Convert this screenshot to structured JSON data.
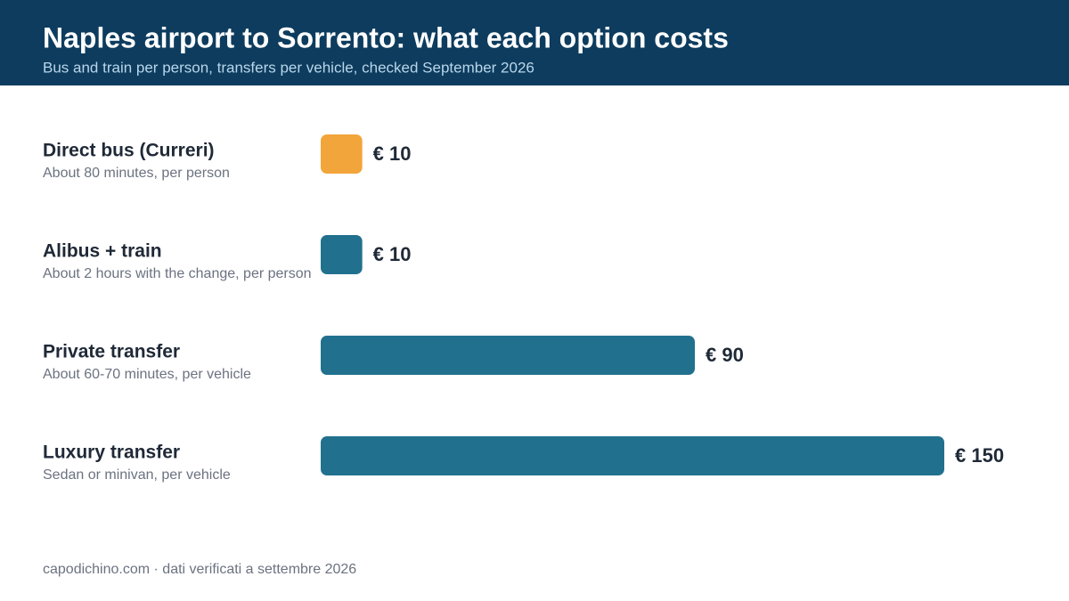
{
  "chart_data": {
    "type": "bar",
    "orientation": "horizontal",
    "title": "Naples airport to Sorrento: what each option costs",
    "subtitle": "Bus and train per person, transfers per vehicle, checked September 2026",
    "categories": [
      "Direct bus (Curreri)",
      "Alibus + train",
      "Private transfer",
      "Luxury transfer"
    ],
    "descriptions": [
      "About 80 minutes, per person",
      "About 2 hours with the change, per person",
      "About 60-70 minutes, per vehicle",
      "Sedan or minivan, per vehicle"
    ],
    "values": [
      10,
      10,
      90,
      150
    ],
    "value_labels": [
      "€ 10",
      "€ 10",
      "€ 90",
      "€ 150"
    ],
    "colors": [
      "#f2a53a",
      "#21718e",
      "#21718e",
      "#21718e"
    ],
    "xlim": [
      0,
      150
    ],
    "source": "capodichino.com · dati verificati a settembre 2026"
  }
}
